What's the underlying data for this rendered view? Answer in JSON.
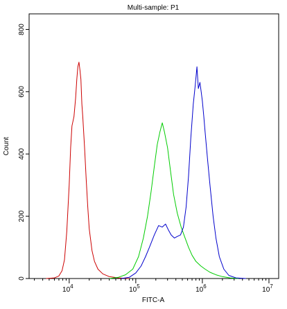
{
  "chart_data": {
    "type": "line",
    "title": "Multi-sample: P1",
    "xlabel": "FITC-A",
    "ylabel": "Count",
    "x_scale": "log",
    "xlim": [
      2500,
      14000000
    ],
    "ylim": [
      0,
      850
    ],
    "grid": false,
    "legend": "none",
    "x_ticks": [
      {
        "value": 10000,
        "base": "10",
        "exp": "4"
      },
      {
        "value": 100000,
        "base": "10",
        "exp": "5"
      },
      {
        "value": 1000000,
        "base": "10",
        "exp": "6"
      },
      {
        "value": 10000000,
        "base": "10",
        "exp": "7"
      }
    ],
    "y_ticks": [
      {
        "value": 0,
        "label": "0"
      },
      {
        "value": 200,
        "label": "200"
      },
      {
        "value": 400,
        "label": "400"
      },
      {
        "value": 600,
        "label": "600"
      },
      {
        "value": 800,
        "label": "800"
      }
    ],
    "series": [
      {
        "color": "#cc0000",
        "points": [
          [
            4500,
            0
          ],
          [
            6000,
            2
          ],
          [
            7000,
            8
          ],
          [
            7800,
            25
          ],
          [
            8500,
            60
          ],
          [
            9200,
            150
          ],
          [
            10000,
            300
          ],
          [
            10500,
            420
          ],
          [
            11000,
            490
          ],
          [
            11800,
            520
          ],
          [
            12500,
            580
          ],
          [
            13000,
            640
          ],
          [
            13500,
            680
          ],
          [
            14000,
            695
          ],
          [
            14500,
            670
          ],
          [
            15000,
            640
          ],
          [
            15500,
            560
          ],
          [
            16000,
            520
          ],
          [
            17000,
            420
          ],
          [
            18000,
            320
          ],
          [
            19000,
            230
          ],
          [
            20000,
            160
          ],
          [
            22000,
            90
          ],
          [
            24000,
            55
          ],
          [
            27000,
            30
          ],
          [
            32000,
            15
          ],
          [
            40000,
            6
          ],
          [
            55000,
            2
          ],
          [
            80000,
            0
          ]
        ]
      },
      {
        "color": "#00cc00",
        "points": [
          [
            40000,
            0
          ],
          [
            55000,
            4
          ],
          [
            70000,
            12
          ],
          [
            90000,
            30
          ],
          [
            110000,
            70
          ],
          [
            130000,
            130
          ],
          [
            150000,
            200
          ],
          [
            170000,
            280
          ],
          [
            190000,
            360
          ],
          [
            210000,
            430
          ],
          [
            230000,
            470
          ],
          [
            250000,
            500
          ],
          [
            270000,
            470
          ],
          [
            300000,
            420
          ],
          [
            330000,
            350
          ],
          [
            370000,
            270
          ],
          [
            420000,
            210
          ],
          [
            480000,
            165
          ],
          [
            550000,
            130
          ],
          [
            620000,
            100
          ],
          [
            700000,
            75
          ],
          [
            800000,
            55
          ],
          [
            950000,
            40
          ],
          [
            1100000,
            30
          ],
          [
            1300000,
            20
          ],
          [
            1600000,
            12
          ],
          [
            2000000,
            6
          ],
          [
            2600000,
            2
          ],
          [
            3500000,
            0
          ]
        ]
      },
      {
        "color": "#0000cc",
        "points": [
          [
            60000,
            0
          ],
          [
            80000,
            4
          ],
          [
            100000,
            18
          ],
          [
            120000,
            40
          ],
          [
            140000,
            70
          ],
          [
            160000,
            100
          ],
          [
            190000,
            140
          ],
          [
            220000,
            170
          ],
          [
            250000,
            165
          ],
          [
            280000,
            175
          ],
          [
            310000,
            155
          ],
          [
            340000,
            140
          ],
          [
            380000,
            130
          ],
          [
            420000,
            135
          ],
          [
            470000,
            140
          ],
          [
            520000,
            165
          ],
          [
            570000,
            230
          ],
          [
            620000,
            330
          ],
          [
            670000,
            450
          ],
          [
            730000,
            560
          ],
          [
            780000,
            620
          ],
          [
            830000,
            680
          ],
          [
            870000,
            610
          ],
          [
            920000,
            630
          ],
          [
            960000,
            600
          ],
          [
            1000000,
            570
          ],
          [
            1050000,
            520
          ],
          [
            1100000,
            470
          ],
          [
            1200000,
            380
          ],
          [
            1300000,
            300
          ],
          [
            1450000,
            200
          ],
          [
            1600000,
            130
          ],
          [
            1800000,
            70
          ],
          [
            2100000,
            30
          ],
          [
            2500000,
            10
          ],
          [
            3200000,
            2
          ],
          [
            4500000,
            0
          ]
        ]
      }
    ]
  }
}
